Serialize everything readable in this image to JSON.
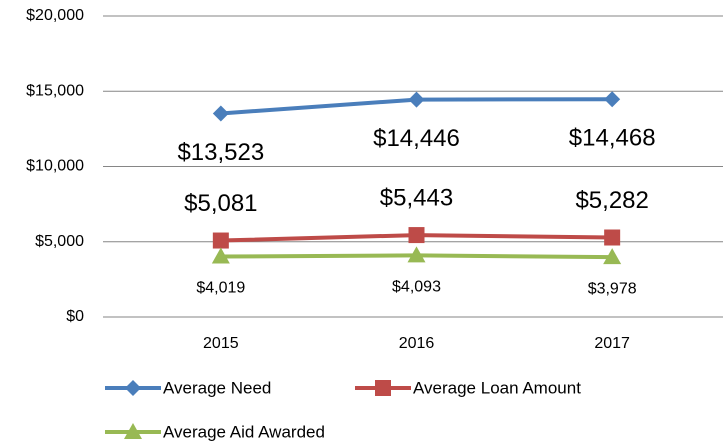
{
  "chart_data": {
    "type": "line",
    "categories": [
      "2015",
      "2016",
      "2017"
    ],
    "series": [
      {
        "name": "Average Need",
        "color": "#4a7ebb",
        "marker": "diamond",
        "label_position": "below",
        "values": [
          13523,
          14446,
          14468
        ],
        "value_labels": [
          "$13,523",
          "$14,446",
          "$14,468"
        ]
      },
      {
        "name": "Average Loan Amount",
        "color": "#be4b48",
        "marker": "square",
        "label_position": "above",
        "values": [
          5081,
          5443,
          5282
        ],
        "value_labels": [
          "$5,081",
          "$5,443",
          "$5,282"
        ]
      },
      {
        "name": "Average Aid Awarded",
        "color": "#98b954",
        "marker": "triangle",
        "label_position": "below",
        "values": [
          4019,
          4093,
          3978
        ],
        "value_labels": [
          "$4,019",
          "$4,093",
          "$3,978"
        ]
      }
    ],
    "ylim": [
      0,
      20000
    ],
    "yticks": [
      {
        "value": 0,
        "label": "$0"
      },
      {
        "value": 5000,
        "label": "$5,000"
      },
      {
        "value": 10000,
        "label": "$10,000"
      },
      {
        "value": 15000,
        "label": "$15,000"
      },
      {
        "value": 20000,
        "label": "$20,000"
      }
    ],
    "grid": true,
    "legend": "bottom"
  }
}
